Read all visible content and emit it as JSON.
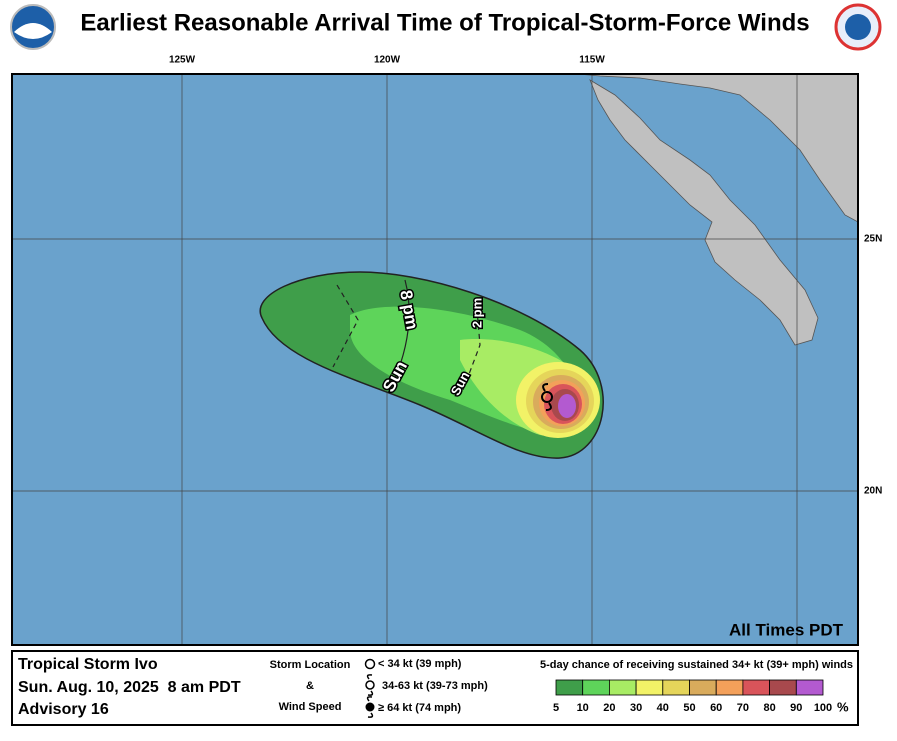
{
  "header": {
    "title": "Earliest Reasonable Arrival Time of Tropical-Storm-Force Winds"
  },
  "map": {
    "lon_labels": [
      "125W",
      "120W",
      "115W"
    ],
    "lat_labels": [
      "25N",
      "20N"
    ],
    "time_labels": [
      {
        "day": "Sun",
        "time": "8 pm"
      },
      {
        "day": "Sun",
        "time": "2 pm"
      }
    ],
    "note": "All Times PDT"
  },
  "footer": {
    "storm": [
      "Tropical Storm Ivo",
      "Sun. Aug. 10, 2025  8 am PDT",
      "Advisory 16"
    ],
    "key_title": [
      "Storm Location",
      "&",
      "Wind Speed"
    ],
    "key_entries": [
      "< 34 kt (39 mph)",
      "34-63 kt (39-73 mph)",
      "≥ 64 kt (74 mph)"
    ],
    "scale": {
      "title": "5-day chance of receiving sustained 34+ kt (39+ mph) winds",
      "ticks": [
        5,
        10,
        20,
        30,
        40,
        50,
        60,
        70,
        80,
        90,
        100
      ],
      "unit": "%",
      "colors": [
        "#3f9e4a",
        "#5ed45a",
        "#a8ec64",
        "#f2f267",
        "#e5d55a",
        "#d9ab5c",
        "#f3a05a",
        "#d9545a",
        "#a8494d",
        "#b35ad0"
      ]
    }
  }
}
